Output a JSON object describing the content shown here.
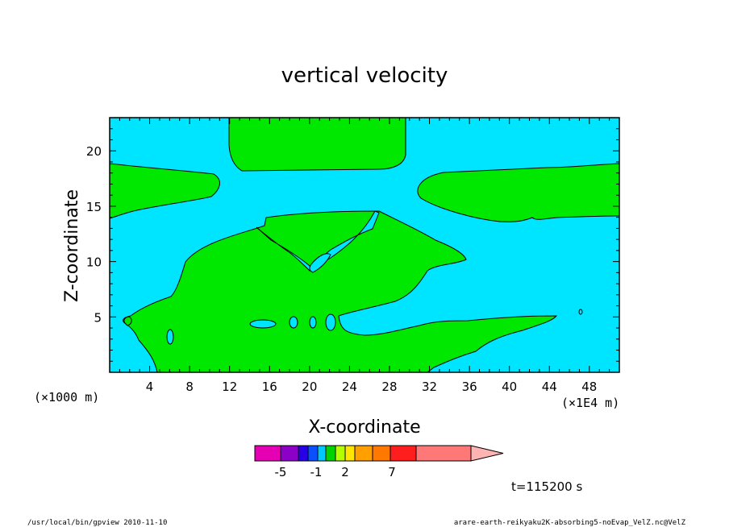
{
  "chart_data": {
    "type": "contour",
    "title": "vertical velocity",
    "xlabel": "X-coordinate",
    "ylabel": "Z-coordinate",
    "x_scale_label": "(×1E4 m)",
    "y_scale_label": "(×1000 m)",
    "xlim": [
      0,
      51
    ],
    "ylim": [
      0,
      23
    ],
    "x_ticks": [
      "4",
      "8",
      "12",
      "16",
      "20",
      "24",
      "28",
      "32",
      "36",
      "40",
      "44",
      "48"
    ],
    "y_ticks": [
      "5",
      "10",
      "15",
      "20"
    ],
    "colors": {
      "negative_fill": "#00e5ff",
      "positive_fill": "#00e800",
      "contour_line": "#000000"
    },
    "regions": [
      {
        "sign": "positive",
        "note": "upper center band near z=18-23, x=12-29"
      },
      {
        "sign": "positive",
        "note": "left band z=14-19, x=0-11"
      },
      {
        "sign": "positive",
        "note": "right band z=14-19, x=31-51"
      },
      {
        "sign": "positive",
        "note": "large lower region z=0-14, x=1-36"
      },
      {
        "sign": "positive",
        "note": "lower right tongue z=1-5.5, x=24-45"
      }
    ],
    "colorbar": {
      "labels": [
        "-5",
        "-1",
        "2",
        "7"
      ],
      "colors": [
        "#e600b4",
        "#8c00c8",
        "#2800e6",
        "#0a50ff",
        "#00c8ff",
        "#00d200",
        "#b4ff00",
        "#ffe600",
        "#ffa000",
        "#ff7800",
        "#ff1e1e",
        "#ff7878",
        "#ffb4b4"
      ]
    }
  },
  "time_label": "t=115200 s",
  "footer": {
    "left": "/usr/local/bin/gpview  2010-11-10",
    "right": "arare-earth-reikyaku2K-absorbing5-noEvap_VelZ.nc@VelZ"
  }
}
